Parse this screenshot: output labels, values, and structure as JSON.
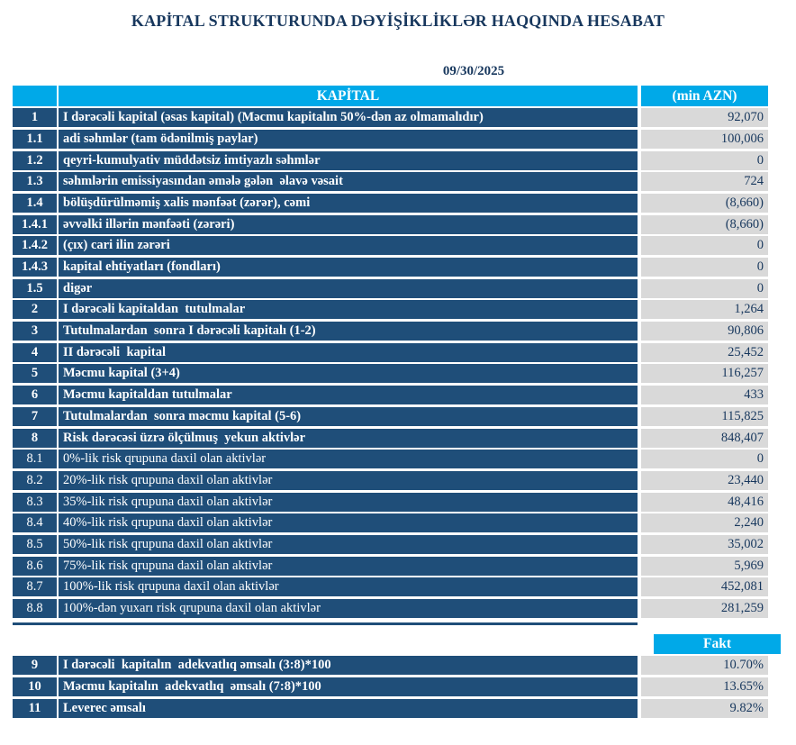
{
  "title": "KAPİTAL STRUKTURUNDA DƏYİŞİKLİKLƏR HAQQINDA HESABAT",
  "date": "09/30/2025",
  "colors": {
    "accent_cyan": "#00A9E8",
    "row_navy": "#1F4E79",
    "value_bg": "#D9D9D9",
    "text_navy": "#17375D"
  },
  "table": {
    "header_label": "KAPİTAL",
    "header_unit": "(min AZN)",
    "rows": [
      {
        "num": "1",
        "label": "I dərəcəli kapital (əsas kapital) (Məcmu kapitalın 50%-dən az olmamalıdır)",
        "value": "92,070",
        "bold": true
      },
      {
        "num": "1.1",
        "label": "adi səhmlər (tam ödənilmiş paylar)",
        "value": "100,006",
        "bold": true
      },
      {
        "num": "1.2",
        "label": "qeyri-kumulyativ müddətsiz imtiyazlı səhmlər",
        "value": "0",
        "bold": true
      },
      {
        "num": "1.3",
        "label": "səhmlərin emissiyasından əmələ gələn  əlavə vəsait",
        "value": "724",
        "bold": true
      },
      {
        "num": "1.4",
        "label": "bölüşdürülməmiş xalis mənfəət (zərər), cəmi",
        "value": "(8,660)",
        "bold": true
      },
      {
        "num": "1.4.1",
        "label": "əvvəlki illərin mənfəəti (zərəri)",
        "value": "(8,660)",
        "bold": true
      },
      {
        "num": "1.4.2",
        "label": "(çıx) cari ilin zərəri",
        "value": "0",
        "bold": true
      },
      {
        "num": "1.4.3",
        "label": "kapital ehtiyatları (fondları)",
        "value": "0",
        "bold": true
      },
      {
        "num": "1.5",
        "label": "digər",
        "value": "0",
        "bold": true
      },
      {
        "num": "2",
        "label": "I dərəcəli kapitaldan  tutulmalar",
        "value": "1,264",
        "bold": true
      },
      {
        "num": "3",
        "label": "Tutulmalardan  sonra I dərəcəli kapitalı (1-2)",
        "value": "90,806",
        "bold": true
      },
      {
        "num": "4",
        "label": "II dərəcəli  kapital",
        "value": "25,452",
        "bold": true
      },
      {
        "num": "5",
        "label": "Məcmu kapital (3+4)",
        "value": "116,257",
        "bold": true
      },
      {
        "num": "6",
        "label": "Məcmu kapitaldan tutulmalar",
        "value": "433",
        "bold": true
      },
      {
        "num": "7",
        "label": "Tutulmalardan  sonra məcmu kapital (5-6)",
        "value": "115,825",
        "bold": true
      },
      {
        "num": "8",
        "label": "Risk dərəcəsi üzrə ölçülmuş  yekun aktivlər",
        "value": "848,407",
        "bold": true
      },
      {
        "num": "8.1",
        "label": "0%-lik risk qrupuna daxil olan aktivlər",
        "value": "0",
        "bold": false
      },
      {
        "num": "8.2",
        "label": "20%-lik risk qrupuna daxil olan aktivlər",
        "value": "23,440",
        "bold": false
      },
      {
        "num": "8.3",
        "label": "35%-lik risk qrupuna daxil olan aktivlər",
        "value": "48,416",
        "bold": false
      },
      {
        "num": "8.4",
        "label": "40%-lik risk qrupuna daxil olan aktivlər",
        "value": "2,240",
        "bold": false
      },
      {
        "num": "8.5",
        "label": "50%-lik risk qrupuna daxil olan aktivlər",
        "value": "35,002",
        "bold": false
      },
      {
        "num": "8.6",
        "label": "75%-lik risk qrupuna daxil olan aktivlər",
        "value": "5,969",
        "bold": false
      },
      {
        "num": "8.7",
        "label": "100%-lik risk qrupuna daxil olan aktivlər",
        "value": "452,081",
        "bold": false
      },
      {
        "num": "8.8",
        "label": "100%-dən yuxarı risk qrupuna daxil olan aktivlər",
        "value": "281,259",
        "bold": false
      }
    ]
  },
  "ratios_table": {
    "header": "Fakt",
    "rows": [
      {
        "num": "9",
        "label": "I dərəcəli  kapitalın  adekvatlıq əmsalı (3:8)*100",
        "value": "10.70%",
        "bold": true
      },
      {
        "num": "10",
        "label": "Məcmu kapitalın  adekvatlıq  əmsalı (7:8)*100",
        "value": "13.65%",
        "bold": true
      },
      {
        "num": "11",
        "label": "Leverec əmsalı",
        "value": "9.82%",
        "bold": true
      }
    ]
  }
}
